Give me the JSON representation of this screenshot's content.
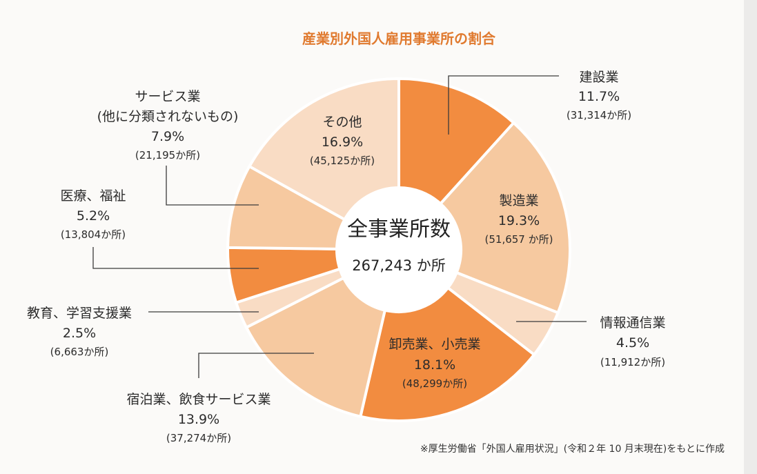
{
  "chart_data": {
    "type": "pie",
    "title": "産業別外国人雇用事業所の割合",
    "center": {
      "label": "全事業所数",
      "total": "267,243 か所"
    },
    "slices": [
      {
        "label": "建設業",
        "percent": 11.7,
        "percent_text": "11.7%",
        "count_text": "(31,314か所)",
        "color": "#f28c40"
      },
      {
        "label": "製造業",
        "percent": 19.3,
        "percent_text": "19.3%",
        "count_text": "(51,657 か所)",
        "color": "#f6c9a0"
      },
      {
        "label": "情報通信業",
        "percent": 4.5,
        "percent_text": "4.5%",
        "count_text": "(11,912か所)",
        "color": "#f9dcc4"
      },
      {
        "label": "卸売業、小売業",
        "percent": 18.1,
        "percent_text": "18.1%",
        "count_text": "(48,299か所)",
        "color": "#f28c40"
      },
      {
        "label": "宿泊業、飲食サービス業",
        "percent": 13.9,
        "percent_text": "13.9%",
        "count_text": "(37,274か所)",
        "color": "#f6c9a0"
      },
      {
        "label": "教育、学習支援業",
        "percent": 2.5,
        "percent_text": "2.5%",
        "count_text": "(6,663か所)",
        "color": "#f9dcc4"
      },
      {
        "label": "医療、福祉",
        "percent": 5.2,
        "percent_text": "5.2%",
        "count_text": "(13,804か所)",
        "color": "#f28c40"
      },
      {
        "label": "サービス業",
        "sub_label": "(他に分類されないもの)",
        "percent": 7.9,
        "percent_text": "7.9%",
        "count_text": "(21,195か所)",
        "color": "#f6c9a0"
      },
      {
        "label": "その他",
        "percent": 16.9,
        "percent_text": "16.9%",
        "count_text": "(45,125か所)",
        "color": "#f9dcc4"
      }
    ],
    "source_note": "※厚生労働省「外国人雇用状況」(令和２年 10 月末現在)をもとに作成"
  }
}
